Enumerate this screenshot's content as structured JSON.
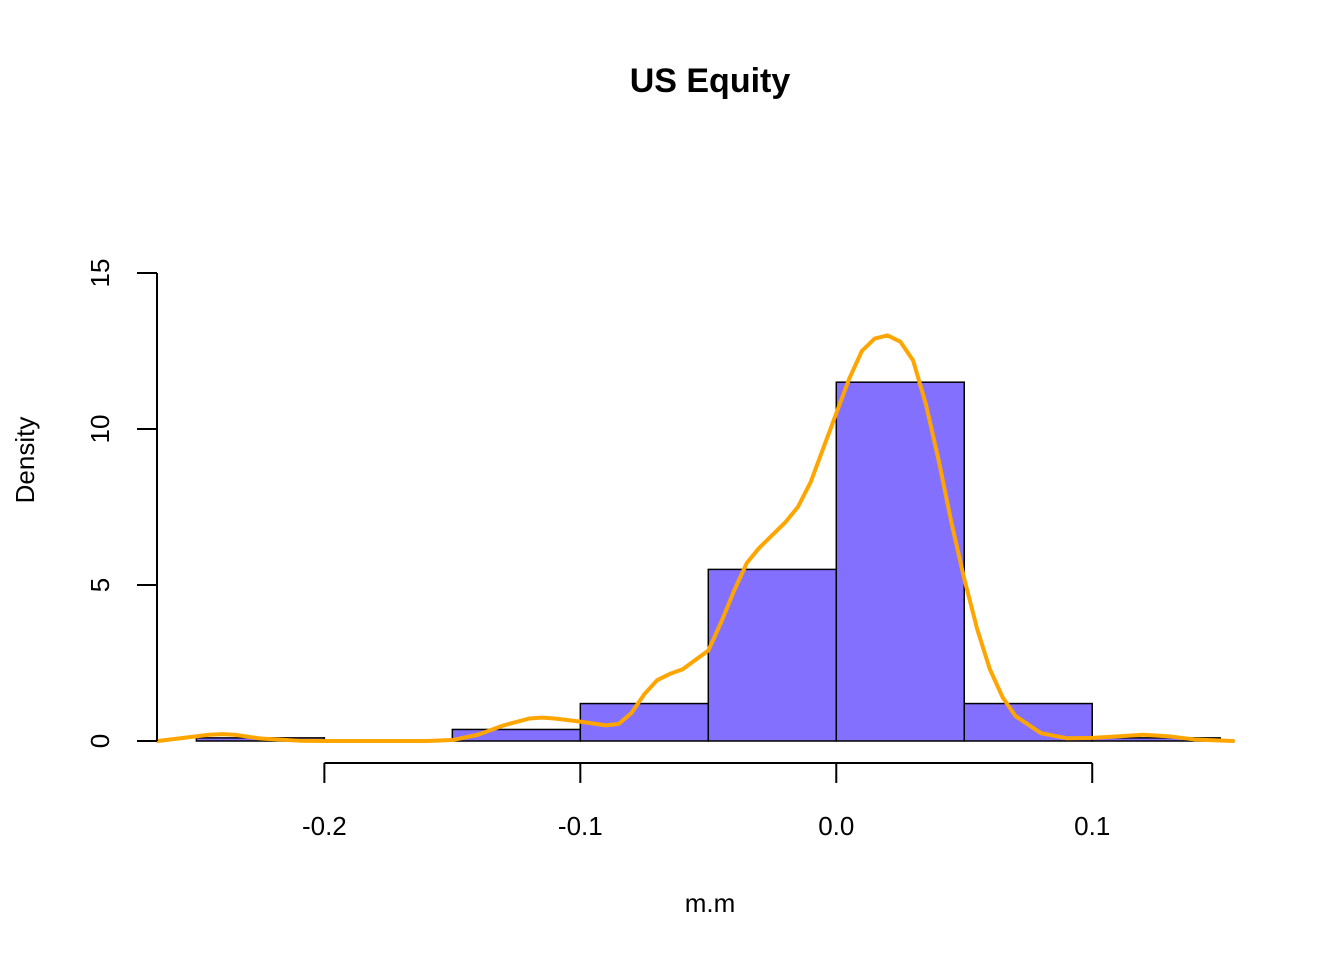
{
  "chart_data": {
    "type": "bar",
    "subtype": "histogram-with-density",
    "title": "US Equity",
    "xlabel": "m.m",
    "ylabel": "Density",
    "xlim": [
      -0.265,
      0.155
    ],
    "ylim": [
      0,
      15
    ],
    "x_ticks": [
      -0.2,
      -0.1,
      0.0,
      0.1
    ],
    "x_tick_labels": [
      "-0.2",
      "-0.1",
      "0.0",
      "0.1"
    ],
    "y_ticks": [
      0,
      5,
      10,
      15
    ],
    "y_tick_labels": [
      "0",
      "5",
      "10",
      "15"
    ],
    "grid": false,
    "bins": [
      {
        "x0": -0.25,
        "x1": -0.2,
        "density": 0.1
      },
      {
        "x0": -0.2,
        "x1": -0.15,
        "density": 0.0
      },
      {
        "x0": -0.15,
        "x1": -0.1,
        "density": 0.37
      },
      {
        "x0": -0.1,
        "x1": -0.05,
        "density": 1.2
      },
      {
        "x0": -0.05,
        "x1": 0.0,
        "density": 5.5
      },
      {
        "x0": 0.0,
        "x1": 0.05,
        "density": 11.5
      },
      {
        "x0": 0.05,
        "x1": 0.1,
        "density": 1.2
      },
      {
        "x0": 0.1,
        "x1": 0.15,
        "density": 0.1
      }
    ],
    "density_curve": {
      "x": [
        -0.265,
        -0.255,
        -0.245,
        -0.24,
        -0.235,
        -0.225,
        -0.21,
        -0.2,
        -0.18,
        -0.16,
        -0.15,
        -0.14,
        -0.13,
        -0.12,
        -0.115,
        -0.11,
        -0.1,
        -0.09,
        -0.085,
        -0.08,
        -0.075,
        -0.07,
        -0.065,
        -0.06,
        -0.05,
        -0.045,
        -0.04,
        -0.035,
        -0.03,
        -0.025,
        -0.02,
        -0.015,
        -0.01,
        -0.005,
        0.0,
        0.005,
        0.01,
        0.015,
        0.02,
        0.025,
        0.03,
        0.035,
        0.04,
        0.045,
        0.05,
        0.055,
        0.06,
        0.065,
        0.07,
        0.08,
        0.09,
        0.1,
        0.11,
        0.12,
        0.13,
        0.14,
        0.155
      ],
      "y": [
        0.0,
        0.1,
        0.2,
        0.22,
        0.2,
        0.08,
        0.01,
        0.0,
        0.0,
        0.0,
        0.03,
        0.2,
        0.5,
        0.72,
        0.75,
        0.72,
        0.62,
        0.5,
        0.55,
        0.9,
        1.5,
        1.95,
        2.15,
        2.3,
        2.9,
        3.8,
        4.8,
        5.7,
        6.2,
        6.6,
        7.0,
        7.5,
        8.3,
        9.4,
        10.5,
        11.6,
        12.5,
        12.9,
        13.0,
        12.8,
        12.2,
        10.8,
        9.0,
        7.0,
        5.2,
        3.6,
        2.3,
        1.4,
        0.8,
        0.25,
        0.09,
        0.1,
        0.15,
        0.2,
        0.15,
        0.05,
        0.0
      ]
    },
    "colors": {
      "bar_fill": "#8470ff",
      "bar_stroke": "#000000",
      "density_line": "#ffa500"
    }
  }
}
